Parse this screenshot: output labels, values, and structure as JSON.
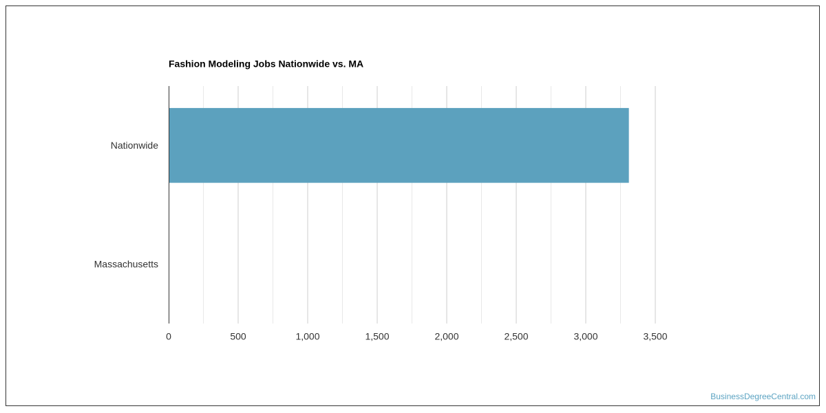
{
  "chart_data": {
    "type": "bar",
    "orientation": "horizontal",
    "title": "Fashion Modeling Jobs Nationwide vs. MA",
    "categories": [
      "Nationwide",
      "Massachusetts"
    ],
    "values": [
      3310,
      0
    ],
    "color": "#5ca1be",
    "xlim": [
      0,
      3500
    ],
    "xticks": [
      0,
      500,
      {
        "value": 1000,
        "label": "1,000"
      },
      {
        "value": 1500,
        "label": "1,500"
      },
      {
        "value": 2000,
        "label": "2,000"
      },
      {
        "value": 2500,
        "label": "2,500"
      },
      {
        "value": 3000,
        "label": "3,000"
      },
      {
        "value": 3500,
        "label": "3,500"
      }
    ],
    "xminorticks": [
      250,
      750,
      1250,
      1750,
      2250,
      2750,
      3250
    ],
    "grid": true,
    "source": "BusinessDegreeCentral.com"
  }
}
